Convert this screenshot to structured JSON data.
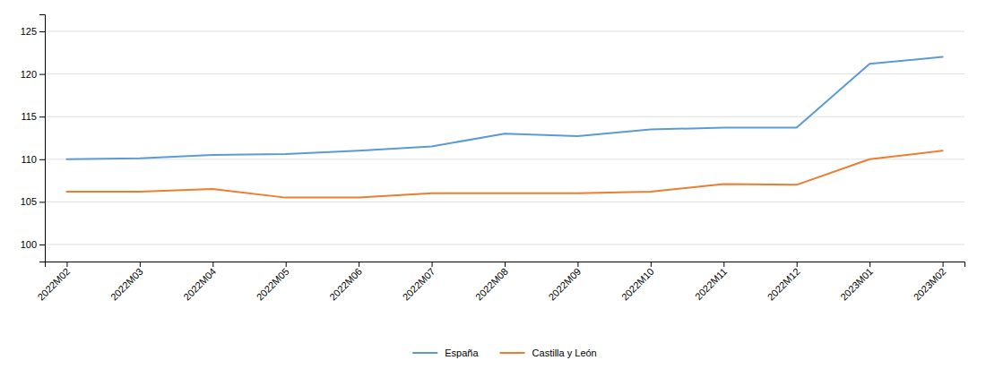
{
  "chart_data": {
    "type": "line",
    "categories": [
      "2022M02",
      "2022M03",
      "2022M04",
      "2022M05",
      "2022M06",
      "2022M07",
      "2022M08",
      "2022M09",
      "2022M10",
      "2022M11",
      "2022M12",
      "2023M01",
      "2023M02"
    ],
    "series": [
      {
        "name": "España",
        "color": "#5B9BD5",
        "values": [
          110.0,
          110.1,
          110.5,
          110.6,
          111.0,
          111.5,
          113.0,
          112.7,
          113.5,
          113.7,
          113.7,
          121.2,
          122.0
        ]
      },
      {
        "name": "Castilla y León",
        "color": "#ED7D31",
        "values": [
          106.2,
          106.2,
          106.5,
          105.5,
          105.5,
          106.0,
          106.0,
          106.0,
          106.2,
          107.1,
          107.0,
          110.0,
          111.0
        ]
      }
    ],
    "ylim": [
      98,
      127
    ],
    "yticks": [
      100,
      105,
      110,
      115,
      120,
      125
    ],
    "grid": true,
    "legend": "bottom"
  }
}
